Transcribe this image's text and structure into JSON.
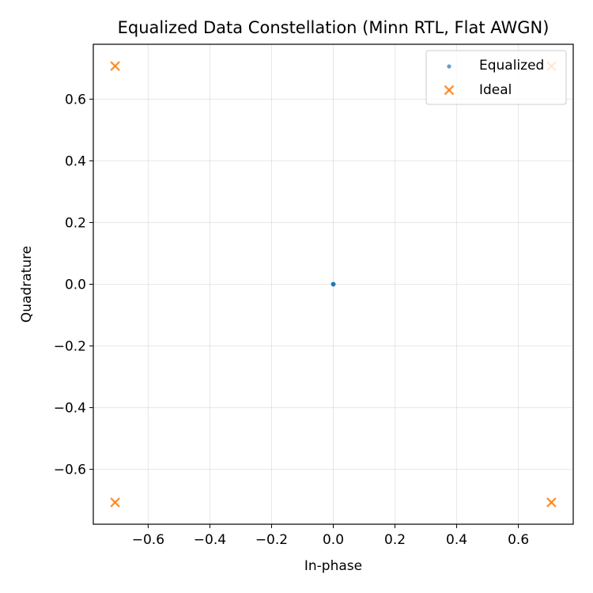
{
  "chart_data": {
    "type": "scatter",
    "title": "Equalized Data Constellation (Minn RTL, Flat AWGN)",
    "xlabel": "In-phase",
    "ylabel": "Quadrature",
    "xlim": [
      -0.7778,
      0.7778
    ],
    "ylim": [
      -0.7778,
      0.7778
    ],
    "xticks": [
      -0.6,
      -0.4,
      -0.2,
      0.0,
      0.2,
      0.4,
      0.6
    ],
    "yticks": [
      -0.6,
      -0.4,
      -0.2,
      0.0,
      0.2,
      0.4,
      0.6
    ],
    "xtick_labels": [
      "−0.6",
      "−0.4",
      "−0.2",
      "0.0",
      "0.2",
      "0.4",
      "0.6"
    ],
    "ytick_labels": [
      "−0.6",
      "−0.4",
      "−0.2",
      "0.0",
      "0.2",
      "0.4",
      "0.6"
    ],
    "grid": true,
    "legend_position": "top-right",
    "series": [
      {
        "name": "Equalized",
        "marker": "dot",
        "color": "#1f77b4",
        "points": [
          [
            0.0,
            0.0
          ],
          [
            0.001,
            0.0
          ],
          [
            -0.001,
            0.001
          ],
          [
            0.0,
            -0.001
          ],
          [
            0.001,
            0.001
          ]
        ]
      },
      {
        "name": "Ideal",
        "marker": "x",
        "color": "#ff7f0e",
        "points": [
          [
            -0.7071,
            0.7071
          ],
          [
            0.7071,
            0.7071
          ],
          [
            -0.7071,
            -0.7071
          ],
          [
            0.7071,
            -0.7071
          ]
        ]
      }
    ]
  }
}
